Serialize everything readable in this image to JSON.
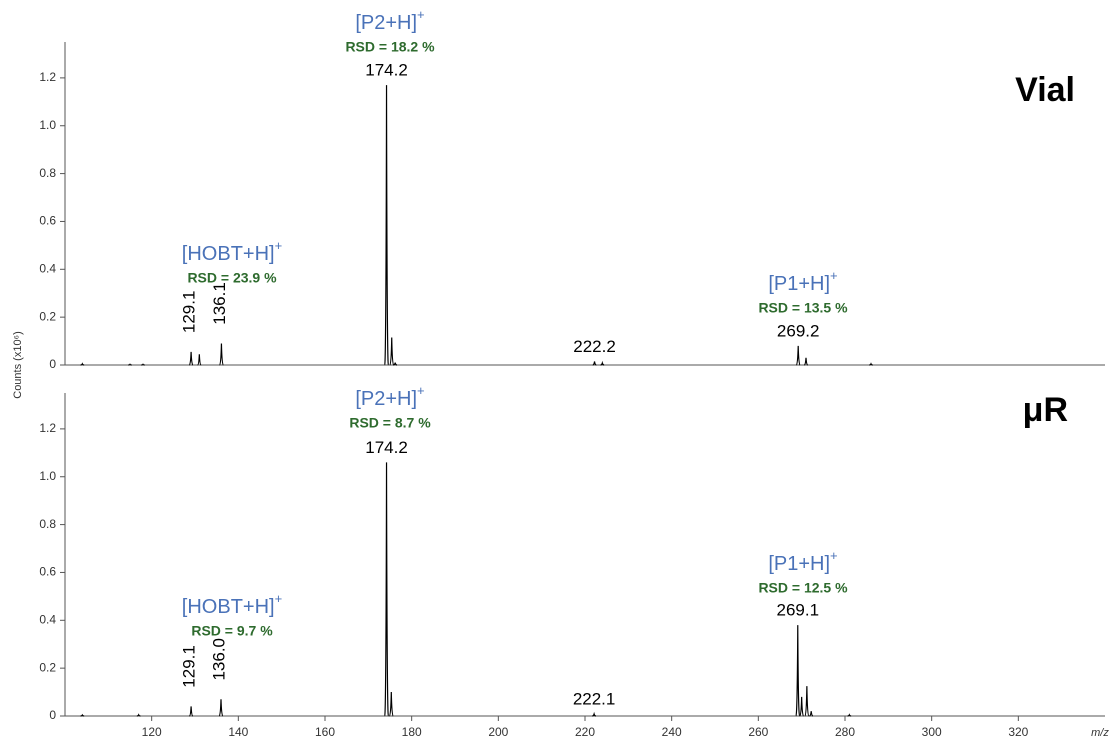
{
  "ylabel": "Counts (x10⁶)",
  "xlabel": "m/z",
  "chart_data": [
    {
      "type": "spectrum",
      "panel_label": "Vial",
      "xlim": [
        100,
        340
      ],
      "ylim": [
        0,
        1.35
      ],
      "yticks": [
        0,
        0.2,
        0.4,
        0.6,
        0.8,
        {
          "value": 1,
          "label": "1.0"
        },
        1.2
      ],
      "color": "#000000",
      "x": [
        104,
        115,
        118,
        129.1,
        131,
        136.1,
        174.2,
        175.4,
        176.2,
        222.2,
        224,
        269.2,
        271,
        286
      ],
      "values": [
        0.005,
        0.003,
        0.003,
        0.055,
        0.045,
        0.09,
        1.17,
        0.115,
        0.01,
        0.015,
        0.008,
        0.08,
        0.03,
        0.005
      ],
      "peak_labels": [
        null,
        null,
        null,
        "129.1",
        null,
        "136.1",
        "174.2",
        null,
        null,
        "222.2",
        null,
        "269.2",
        null,
        null
      ],
      "annotations": [
        {
          "ion": "[HOBT+H]",
          "charge": "+",
          "rsd": "RSD = 23.9 %"
        },
        {
          "ion": "[P2+H]",
          "charge": "+",
          "rsd": "RSD = 18.2 %"
        },
        {
          "ion": "[P1+H]",
          "charge": "+",
          "rsd": "RSD = 13.5 %"
        }
      ]
    },
    {
      "type": "spectrum",
      "panel_label": "μR",
      "xlim": [
        100,
        340
      ],
      "ylim": [
        0,
        1.35
      ],
      "yticks": [
        0,
        0.2,
        0.4,
        0.6,
        0.8,
        {
          "value": 1,
          "label": "1.0"
        },
        1.2
      ],
      "xticks": [
        120,
        140,
        160,
        180,
        200,
        220,
        240,
        260,
        280,
        300,
        320
      ],
      "color": "#000000",
      "x": [
        104,
        117,
        129.1,
        136.0,
        174.2,
        175.3,
        222.1,
        269.1,
        270.0,
        271.2,
        272.2,
        281
      ],
      "values": [
        0.004,
        0.005,
        0.04,
        0.07,
        1.06,
        0.1,
        0.008,
        0.38,
        0.08,
        0.125,
        0.02,
        0.005
      ],
      "peak_labels": [
        null,
        null,
        "129.1",
        "136.0",
        "174.2",
        null,
        "222.1",
        "269.1",
        null,
        null,
        null,
        null
      ],
      "annotations": [
        {
          "ion": "[HOBT+H]",
          "charge": "+",
          "rsd": "RSD = 9.7 %"
        },
        {
          "ion": "[P2+H]",
          "charge": "+",
          "rsd": "RSD = 8.7 %"
        },
        {
          "ion": "[P1+H]",
          "charge": "+",
          "rsd": "RSD = 12.5 %"
        }
      ]
    }
  ]
}
